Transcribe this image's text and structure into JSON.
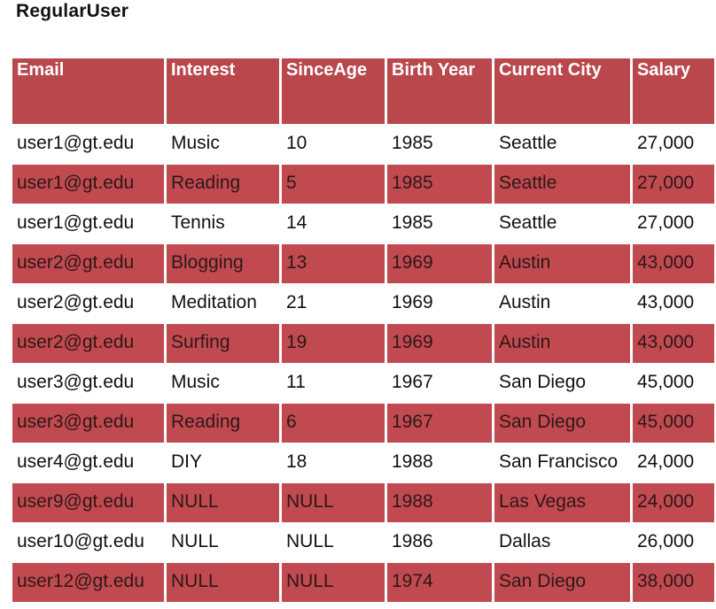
{
  "title": "RegularUser",
  "columns": [
    "Email",
    "Interest",
    "SinceAge",
    "Birth Year",
    "Current City",
    "Salary"
  ],
  "rows": [
    {
      "shaded": false,
      "cells": [
        "user1@gt.edu",
        "Music",
        "10",
        "1985",
        "Seattle",
        "27,000"
      ]
    },
    {
      "shaded": true,
      "cells": [
        "user1@gt.edu",
        "Reading",
        "5",
        "1985",
        "Seattle",
        "27,000"
      ]
    },
    {
      "shaded": false,
      "cells": [
        "user1@gt.edu",
        "Tennis",
        "14",
        "1985",
        "Seattle",
        "27,000"
      ]
    },
    {
      "shaded": true,
      "cells": [
        "user2@gt.edu",
        "Blogging",
        "13",
        "1969",
        "Austin",
        "43,000"
      ]
    },
    {
      "shaded": false,
      "cells": [
        "user2@gt.edu",
        "Meditation",
        "21",
        "1969",
        "Austin",
        "43,000"
      ]
    },
    {
      "shaded": true,
      "cells": [
        "user2@gt.edu",
        "Surfing",
        "19",
        "1969",
        "Austin",
        "43,000"
      ]
    },
    {
      "shaded": false,
      "cells": [
        "user3@gt.edu",
        "Music",
        "11",
        "1967",
        "San Diego",
        "45,000"
      ]
    },
    {
      "shaded": true,
      "cells": [
        "user3@gt.edu",
        "Reading",
        "6",
        "1967",
        "San Diego",
        "45,000"
      ]
    },
    {
      "shaded": false,
      "cells": [
        "user4@gt.edu",
        "DIY",
        "18",
        "1988",
        "San Francisco",
        "24,000"
      ]
    },
    {
      "shaded": true,
      "cells": [
        "user9@gt.edu",
        "NULL",
        "NULL",
        "1988",
        "Las Vegas",
        "24,000"
      ]
    },
    {
      "shaded": false,
      "cells": [
        "user10@gt.edu",
        "NULL",
        "NULL",
        "1986",
        "Dallas",
        "26,000"
      ]
    },
    {
      "shaded": true,
      "cells": [
        "user12@gt.edu",
        "NULL",
        "NULL",
        "1974",
        "San Diego",
        "38,000"
      ]
    }
  ],
  "colors": {
    "header_fill": "#b9474c",
    "row_shade_fill": "#c14a50",
    "header_text": "#ffffff"
  }
}
